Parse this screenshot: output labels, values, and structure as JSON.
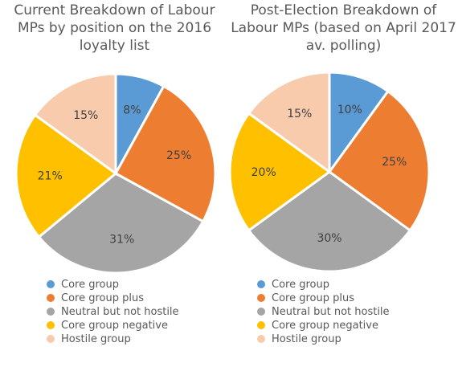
{
  "chart_data": [
    {
      "type": "pie",
      "title": [
        "Current Breakdown of Labour",
        "MPs by position on the 2016",
        "loyalty list"
      ],
      "categories": [
        "Core group",
        "Core group plus",
        "Neutral but not hostile",
        "Core group negative",
        "Hostile group"
      ],
      "values": [
        8,
        25,
        31,
        21,
        15
      ],
      "labels": [
        "8%",
        "25%",
        "31%",
        "21%",
        "15%"
      ],
      "colors": [
        "#5b9bd5",
        "#ed7d31",
        "#a5a5a5",
        "#ffc000",
        "#f8cbad"
      ],
      "legend_position": "bottom"
    },
    {
      "type": "pie",
      "title": [
        "Post-Election Breakdown of",
        "Labour MPs (based on April 2017",
        "av. polling)"
      ],
      "categories": [
        "Core group",
        "Core group plus",
        "Neutral but not hostile",
        "Core group negative",
        "Hostile group"
      ],
      "values": [
        10,
        25,
        30,
        20,
        15
      ],
      "labels": [
        "10%",
        "25%",
        "30%",
        "20%",
        "15%"
      ],
      "colors": [
        "#5b9bd5",
        "#ed7d31",
        "#a5a5a5",
        "#ffc000",
        "#f8cbad"
      ],
      "legend_position": "bottom"
    }
  ]
}
